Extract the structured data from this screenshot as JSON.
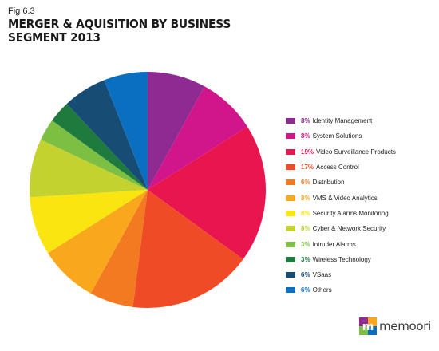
{
  "header": {
    "fig": "Fig 6.3",
    "title": "MERGER & AQUISITION BY BUSINESS SEGMENT 2013"
  },
  "chart_data": {
    "type": "pie",
    "title": "MERGER & AQUISITION BY BUSINESS SEGMENT 2013",
    "start_angle_deg": 0,
    "direction": "clockwise",
    "legend_position": "right",
    "slices": [
      {
        "label": "Identity Management",
        "value": 8,
        "pct_label": "8%",
        "color": "#8e2a91"
      },
      {
        "label": "System Solutions",
        "value": 8,
        "pct_label": "8%",
        "color": "#d1168c"
      },
      {
        "label": "Video Surveillance Products",
        "value": 19,
        "pct_label": "19%",
        "color": "#e9154e"
      },
      {
        "label": "Access Control",
        "value": 17,
        "pct_label": "17%",
        "color": "#ee4b26"
      },
      {
        "label": "Distribution",
        "value": 6,
        "pct_label": "6%",
        "color": "#f37a20"
      },
      {
        "label": "VMS & Video Analytics",
        "value": 8,
        "pct_label": "8%",
        "color": "#f9a71d"
      },
      {
        "label": "Security Alarms Monitoring",
        "value": 8,
        "pct_label": "8%",
        "color": "#fbe510"
      },
      {
        "label": "Cyber & Network Security",
        "value": 8,
        "pct_label": "8%",
        "color": "#c3d22e"
      },
      {
        "label": "Intruder Alarms",
        "value": 3,
        "pct_label": "3%",
        "color": "#7cbf43"
      },
      {
        "label": "Wireless Technology",
        "value": 3,
        "pct_label": "3%",
        "color": "#1e7a3d"
      },
      {
        "label": "VSaas",
        "value": 6,
        "pct_label": "6%",
        "color": "#174c75"
      },
      {
        "label": "Others",
        "value": 6,
        "pct_label": "6%",
        "color": "#0b6fc1"
      }
    ]
  },
  "logo": {
    "text": "memoori",
    "icon": "memoori-logo-icon"
  }
}
